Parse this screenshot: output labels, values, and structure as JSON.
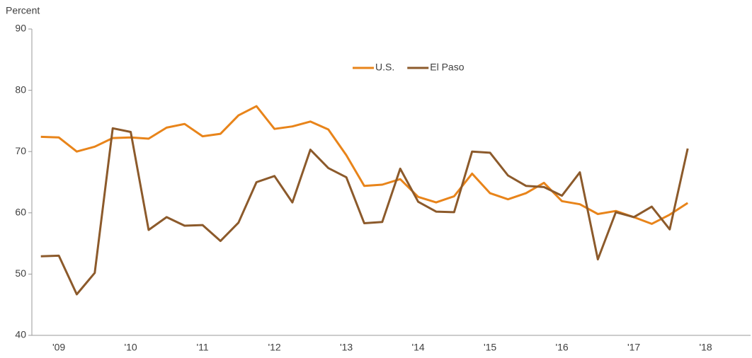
{
  "chart_data": {
    "type": "line",
    "y_label": "Percent",
    "categories": [
      null,
      "'09",
      null,
      null,
      null,
      "'10",
      null,
      null,
      null,
      "'11",
      null,
      null,
      null,
      "'12",
      null,
      null,
      null,
      "'13",
      null,
      null,
      null,
      "'14",
      null,
      null,
      null,
      "'15",
      null,
      null,
      null,
      "'16",
      null,
      null,
      null,
      "'17",
      null,
      null,
      null,
      "'18",
      null,
      null
    ],
    "series": [
      {
        "name": "U.S.",
        "color": "#e8841a",
        "values": [
          72.4,
          72.3,
          70.0,
          70.8,
          72.2,
          72.3,
          72.1,
          73.9,
          74.5,
          72.5,
          72.9,
          75.9,
          77.4,
          73.7,
          74.1,
          74.9,
          73.6,
          69.4,
          64.4,
          64.6,
          65.5,
          62.6,
          61.7,
          62.7,
          66.4,
          63.2,
          62.2,
          63.2,
          64.9,
          61.9,
          61.4,
          59.8,
          60.3,
          59.3,
          58.2,
          59.7,
          61.6,
          null,
          null,
          null
        ]
      },
      {
        "name": "El Paso",
        "color": "#8c5a2b",
        "values": [
          52.9,
          53.0,
          46.7,
          50.2,
          73.8,
          73.2,
          57.2,
          59.3,
          57.9,
          58.0,
          55.4,
          58.4,
          65.0,
          66.0,
          61.7,
          70.3,
          67.3,
          65.8,
          58.3,
          58.5,
          67.2,
          61.8,
          60.2,
          60.1,
          70.0,
          69.8,
          66.1,
          64.4,
          64.2,
          62.8,
          66.6,
          52.4,
          60.1,
          59.3,
          61.0,
          57.3,
          70.5,
          null,
          null,
          null
        ]
      }
    ],
    "ylim": [
      40,
      90
    ],
    "yticks": [
      40,
      50,
      60,
      70,
      80,
      90
    ],
    "grid": false,
    "legend": "top"
  }
}
